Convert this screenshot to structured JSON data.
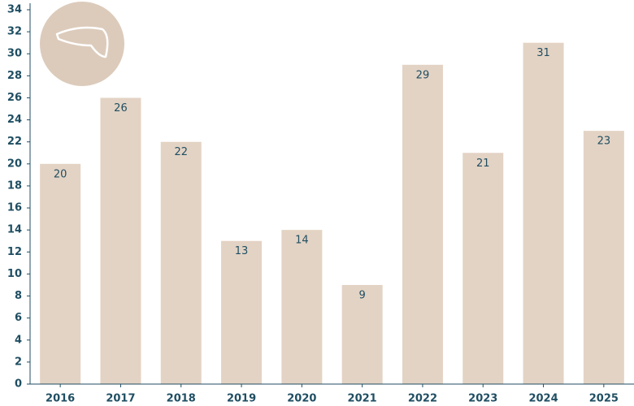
{
  "chart_data": {
    "type": "bar",
    "categories": [
      "2016",
      "2017",
      "2018",
      "2019",
      "2020",
      "2021",
      "2022",
      "2023",
      "2024",
      "2025"
    ],
    "values": [
      20,
      26,
      22,
      13,
      14,
      9,
      29,
      21,
      31,
      23
    ],
    "color": "#e3d3c4",
    "ylim": [
      0,
      34
    ],
    "yticks": [
      0,
      2,
      4,
      6,
      8,
      10,
      12,
      14,
      16,
      18,
      20,
      22,
      24,
      26,
      28,
      30,
      32,
      34
    ]
  }
}
